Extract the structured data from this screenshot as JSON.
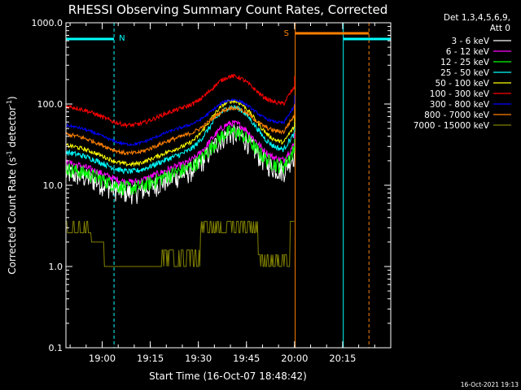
{
  "chart_data": {
    "type": "line",
    "title": "RHESSI Observing Summary Count Rates, Corrected",
    "xlabel": "Start Time (16-Oct-07 18:48:42)",
    "ylabel_parts": [
      "Corrected Count Rate (s",
      "-1",
      " detector",
      "-1",
      ")"
    ],
    "yscale": "log",
    "ylim": [
      0.1,
      1000.0
    ],
    "ytick_labels": [
      {
        "v": 1000.0,
        "label": "1000.0"
      },
      {
        "v": 100.0,
        "label": "100.0"
      },
      {
        "v": 10.0,
        "label": "10.0"
      },
      {
        "v": 1.0,
        "label": "1.0"
      },
      {
        "v": 0.1,
        "label": "0.1"
      }
    ],
    "xlim_minutes": [
      0,
      101.3
    ],
    "xtick_labels": [
      {
        "t": 11.3,
        "label": "19:00"
      },
      {
        "t": 26.3,
        "label": "19:15"
      },
      {
        "t": 41.3,
        "label": "19:30"
      },
      {
        "t": 56.3,
        "label": "19:45"
      },
      {
        "t": 71.3,
        "label": "20:00"
      },
      {
        "t": 86.3,
        "label": "20:15"
      }
    ],
    "legend": {
      "header": [
        "Det 1,3,4,5,6,9,",
        "Att 0"
      ],
      "placement": "right"
    },
    "series": [
      {
        "name": "3 - 6 keV",
        "color": "#ffffff",
        "base": 15.0,
        "hump": 1.9,
        "noise": 0.1
      },
      {
        "name": "6 - 12 keV",
        "color": "#ff00ff",
        "base": 20.0,
        "hump": 1.9,
        "noise": 0.05
      },
      {
        "name": "12 - 25 keV",
        "color": "#00ff00",
        "base": 17.0,
        "hump": 1.7,
        "noise": 0.07
      },
      {
        "name": "25 - 50 keV",
        "color": "#00ffff",
        "base": 27.0,
        "hump": 2.4,
        "noise": 0.04
      },
      {
        "name": "50 - 100 keV",
        "color": "#ffff00",
        "base": 33.0,
        "hump": 2.3,
        "noise": 0.03
      },
      {
        "name": "100 - 300 keV",
        "color": "#ff0000",
        "base": 100.0,
        "hump": 1.2,
        "noise": 0.03
      },
      {
        "name": "300 - 800 keV",
        "color": "#0000ff",
        "base": 58.0,
        "hump": 0.95,
        "noise": 0.02
      },
      {
        "name": "800 - 7000 keV",
        "color": "#ff8000",
        "base": 45.0,
        "hump": 1.0,
        "noise": 0.03
      },
      {
        "name": "7000 - 15000 keV",
        "color": "#808000",
        "base": 3.5,
        "hump": 0.0,
        "noise": 0.0
      }
    ],
    "markers": {
      "night_label": "N",
      "saa_label": "S",
      "night_intervals": [
        [
          0,
          15
        ],
        [
          86.5,
          101.3
        ]
      ],
      "saa_interval": [
        71.5,
        94.5
      ]
    }
  },
  "footer": {
    "timestamp": "16-Oct-2021 19:13"
  }
}
